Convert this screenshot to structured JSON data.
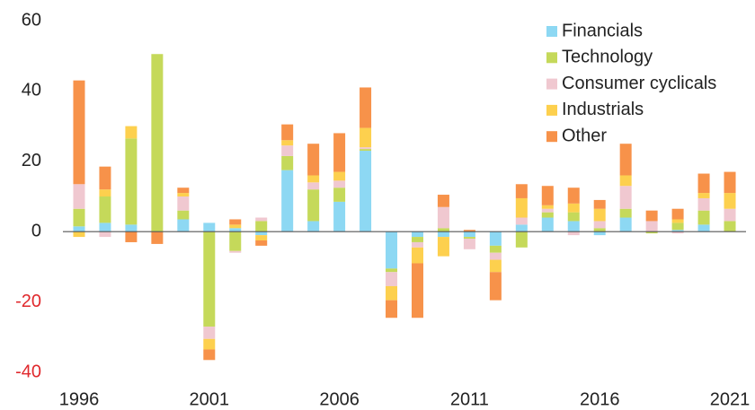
{
  "chart_data": {
    "type": "bar",
    "stacked": true,
    "categories": [
      "1996",
      null,
      null,
      null,
      null,
      "2001",
      null,
      null,
      null,
      null,
      "2006",
      null,
      null,
      null,
      null,
      "2011",
      null,
      null,
      null,
      null,
      "2016",
      null,
      null,
      null,
      null,
      "2021"
    ],
    "series": [
      {
        "name": "Financials",
        "color": "#8dd8f3",
        "values": [
          1.5,
          2.5,
          2,
          0,
          3.5,
          2.5,
          1,
          -1,
          17.5,
          3,
          8.5,
          23,
          -10.5,
          -1.5,
          -1.5,
          -1.5,
          -4,
          2,
          4,
          3,
          -1,
          4,
          0,
          0.5,
          2,
          0
        ]
      },
      {
        "name": "Technology",
        "color": "#c5d95a",
        "values": [
          5,
          7.5,
          24.5,
          50.5,
          2.5,
          -27,
          -5.5,
          3,
          4,
          9,
          4,
          0.5,
          -1,
          -1.5,
          1,
          -0.5,
          -2,
          -4.5,
          1.5,
          2.5,
          1,
          2.5,
          -0.5,
          2,
          4,
          3
        ]
      },
      {
        "name": "Consumer cyclicals",
        "color": "#f0c8d0",
        "values": [
          7,
          -1.5,
          0,
          0,
          4,
          -3.5,
          -0.5,
          1,
          3,
          2,
          2,
          0.5,
          -4,
          -1.5,
          6,
          -3,
          -2,
          2,
          1,
          -1,
          2,
          6.5,
          3,
          -0.5,
          3.5,
          3.5
        ]
      },
      {
        "name": "Industrials",
        "color": "#fdd04e",
        "values": [
          -1.5,
          2,
          3.5,
          0,
          1,
          -3,
          1,
          -1.5,
          1.5,
          2,
          2.5,
          5.5,
          -4,
          -4.5,
          -5.5,
          0,
          -3.5,
          5.5,
          1,
          2.5,
          3.5,
          3,
          0,
          1,
          1.5,
          4.5
        ]
      },
      {
        "name": "Other",
        "color": "#f7924a",
        "values": [
          29.5,
          6.5,
          -3,
          -3.5,
          1.5,
          -3,
          1.5,
          -1.5,
          4.5,
          9,
          11,
          11.5,
          -5,
          -15.5,
          3.5,
          0.5,
          -8,
          4,
          5.5,
          4.5,
          2.5,
          9,
          3,
          3,
          5.5,
          6
        ]
      }
    ],
    "ylim": [
      -40,
      60
    ],
    "yticks": [
      -40,
      -20,
      0,
      20,
      40,
      60
    ],
    "legend": "upper right"
  }
}
